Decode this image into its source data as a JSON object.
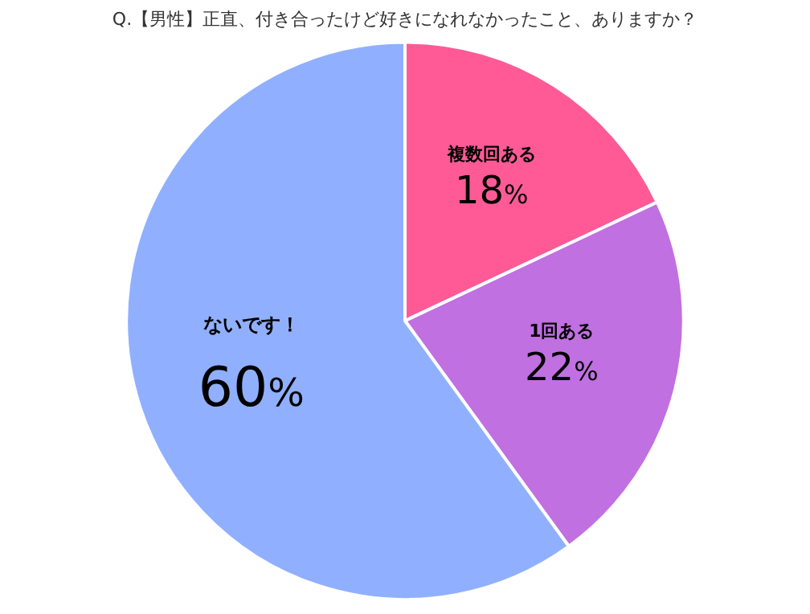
{
  "chart_data": {
    "type": "pie",
    "title": "Q.【男性】正直、付き合ったけど好きになれなかったこと、ありますか？",
    "categories": [
      "複数回ある",
      "1回ある",
      "ないです！"
    ],
    "values": [
      18,
      22,
      60
    ],
    "colors": [
      "#ff5a96",
      "#c070e0",
      "#90b0ff"
    ],
    "value_labels": [
      "18%",
      "22%",
      "60%"
    ],
    "legend": false
  }
}
